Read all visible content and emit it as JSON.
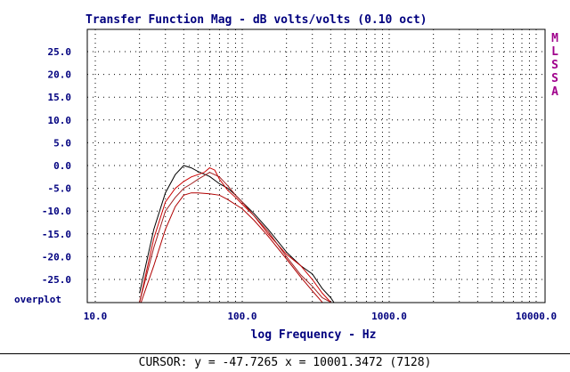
{
  "chart_data": {
    "type": "line",
    "title": "Transfer Function Mag - dB volts/volts (0.10 oct)",
    "xlabel": "log Frequency - Hz",
    "ylabel": "",
    "x_scale": "log",
    "xlim": [
      8,
      1300
    ],
    "ylim": [
      -30,
      30
    ],
    "x_ticks": [
      10,
      100,
      1000,
      10000
    ],
    "x_tick_labels": [
      "10.0",
      "100.0",
      "1000.0",
      "10000.0"
    ],
    "y_ticks": [
      25,
      20,
      15,
      10,
      5,
      0,
      -5,
      -10,
      -15,
      -20,
      -25
    ],
    "y_tick_labels": [
      "25.0",
      "20.0",
      "15.0",
      "10.0",
      "5.0",
      "0.0",
      "-5.0",
      "-10.0",
      "-15.0",
      "-20.0",
      "-25.0"
    ],
    "grid": true,
    "bottom_label": "overplot",
    "series": [
      {
        "color": "#000000",
        "x": [
          20,
          25,
          30,
          35,
          40,
          45,
          50,
          60,
          70,
          80,
          90,
          100,
          120,
          150,
          200,
          250,
          300,
          350,
          400,
          420
        ],
        "y": [
          -28,
          -14,
          -6,
          -2,
          0,
          -0.5,
          -1.3,
          -2.4,
          -4,
          -5,
          -6.5,
          -8,
          -10.5,
          -14,
          -19,
          -22,
          -23.8,
          -27,
          -29,
          -30
        ]
      },
      {
        "color": "#cc0000",
        "x": [
          20,
          25,
          30,
          35,
          40,
          45,
          50,
          55,
          60,
          65,
          70,
          80,
          90,
          100,
          120,
          150,
          200,
          250,
          300,
          350,
          400,
          420
        ],
        "y": [
          -30,
          -16,
          -8,
          -5,
          -3.5,
          -2.5,
          -2,
          -1.5,
          -0.5,
          -1,
          -3,
          -5.5,
          -7,
          -8.5,
          -11,
          -15,
          -19.5,
          -22,
          -25,
          -28,
          -30,
          -30.5
        ]
      },
      {
        "color": "#a02020",
        "x": [
          20,
          25,
          30,
          35,
          40,
          45,
          50,
          60,
          70,
          80,
          90,
          100,
          120,
          150,
          200,
          250,
          300,
          350,
          400
        ],
        "y": [
          -30,
          -18,
          -10,
          -7,
          -5,
          -4,
          -3,
          -1.5,
          -2.5,
          -4.5,
          -6.5,
          -8,
          -11,
          -14.5,
          -20,
          -24,
          -26.5,
          -29,
          -30
        ]
      },
      {
        "color": "#b00000",
        "x": [
          20,
          25,
          30,
          35,
          40,
          45,
          50,
          60,
          70,
          80,
          100,
          120,
          150,
          200,
          250,
          300,
          350,
          400
        ],
        "y": [
          -31,
          -22,
          -14,
          -9,
          -6.5,
          -6,
          -6,
          -6.2,
          -6.5,
          -7.5,
          -9.5,
          -12,
          -15.5,
          -20.5,
          -24.5,
          -27.5,
          -30,
          -32
        ]
      }
    ]
  },
  "brand_letters": [
    "M",
    "L",
    "S",
    "S",
    "A"
  ],
  "status": {
    "text": "CURSOR: y = -47.7265 x = 10001.3472 (7128)"
  }
}
